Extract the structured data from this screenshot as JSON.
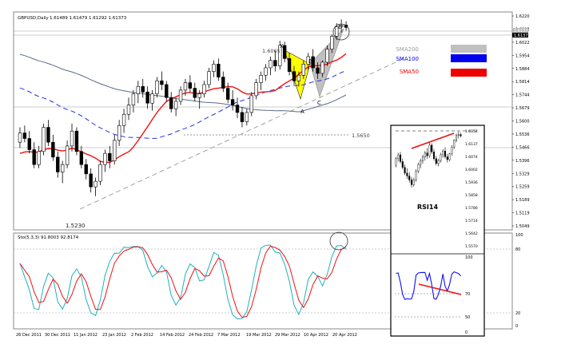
{
  "header": {
    "symbol": "GBPUSD,Daily",
    "ohlc": "1.61489 1.61479 1.61292 1.61373"
  },
  "colors": {
    "bull_candle": "#ffffff",
    "bear_candle": "#000000",
    "sma200": "#5a6b8c",
    "sma100": "#2233dd",
    "sma50": "#ee1111",
    "pattern_xab": "#ffff00",
    "pattern_bcd": "#c0c0c0",
    "stoch_main": "#20b0c0",
    "stoch_signal": "#ee1111",
    "rsi_line": "#1111ee",
    "trend_red": "#ee1111"
  },
  "legend": [
    {
      "label": "SMA200",
      "color": "#c0c0c0"
    },
    {
      "label": "SMA100",
      "color": "#0000ee"
    },
    {
      "label": "SMA50",
      "color": "#ee0000"
    }
  ],
  "annotations": {
    "x": "X",
    "a": "A",
    "b": "B",
    "c": "C",
    "d": "D",
    "x_value": "1.6065",
    "support": "1.5650",
    "low": "1.5230"
  },
  "price_axis": [
    "1.6220",
    "1.6092",
    "1.6022",
    "1.5954",
    "1.5884",
    "1.5814",
    "1.5744",
    "1.5679",
    "1.5600",
    "1.5536",
    "1.5466",
    "1.5396",
    "1.5329",
    "1.5259",
    "1.5189",
    "1.5119",
    "1.5049"
  ],
  "price_tags": [
    "1.6137",
    "1.6137"
  ],
  "stoch": {
    "header": "Sto(5,3,3) 91.8003 92.8174",
    "axis": [
      "100",
      "80",
      "20",
      "0"
    ]
  },
  "inset": {
    "title": "RSI14",
    "axis": [
      "1.6352",
      "1.6137",
      "1.6074",
      "1.6002",
      "1.5936",
      "1.5858",
      "1.5786",
      "1.5714",
      "1.5642",
      "1.5570"
    ],
    "rsi_axis": [
      "100",
      "70",
      "50",
      "0"
    ]
  },
  "date_axis": [
    "26 Dec 2011",
    "30 Dec 2011",
    "11 Jan 2012",
    "23 Jan 2012",
    "2 Feb 2012",
    "14 Feb 2012",
    "24 Feb 2012",
    "7 Mar 2012",
    "19 Mar 2012",
    "29 Mar 2012",
    "10 Apr 2012",
    "20 Apr 2012"
  ],
  "chart_data": {
    "type": "candlestick",
    "title": "GBPUSD,Daily",
    "ylim": [
      1.5049,
      1.622
    ],
    "series": [
      {
        "name": "SMA200"
      },
      {
        "name": "SMA100"
      },
      {
        "name": "SMA50"
      }
    ],
    "key_levels": {
      "high_X": 1.6065,
      "support": 1.565,
      "low": 1.523
    },
    "ohlc": [
      [
        1.552,
        1.56,
        1.549,
        1.557
      ],
      [
        1.557,
        1.561,
        1.552,
        1.554
      ],
      [
        1.554,
        1.558,
        1.546,
        1.548
      ],
      [
        1.548,
        1.552,
        1.538,
        1.54
      ],
      [
        1.54,
        1.55,
        1.538,
        1.547
      ],
      [
        1.547,
        1.562,
        1.545,
        1.56
      ],
      [
        1.56,
        1.564,
        1.55,
        1.552
      ],
      [
        1.552,
        1.556,
        1.542,
        1.544
      ],
      [
        1.544,
        1.547,
        1.533,
        1.536
      ],
      [
        1.536,
        1.542,
        1.53,
        1.54
      ],
      [
        1.54,
        1.553,
        1.538,
        1.55
      ],
      [
        1.55,
        1.562,
        1.547,
        1.558
      ],
      [
        1.558,
        1.56,
        1.545,
        1.547
      ],
      [
        1.547,
        1.55,
        1.538,
        1.54
      ],
      [
        1.54,
        1.543,
        1.532,
        1.535
      ],
      [
        1.535,
        1.538,
        1.525,
        1.528
      ],
      [
        1.528,
        1.533,
        1.523,
        1.531
      ],
      [
        1.531,
        1.542,
        1.529,
        1.54
      ],
      [
        1.54,
        1.548,
        1.536,
        1.546
      ],
      [
        1.546,
        1.55,
        1.538,
        1.542
      ],
      [
        1.542,
        1.556,
        1.54,
        1.553
      ],
      [
        1.553,
        1.564,
        1.55,
        1.561
      ],
      [
        1.561,
        1.57,
        1.557,
        1.567
      ],
      [
        1.567,
        1.576,
        1.564,
        1.572
      ],
      [
        1.572,
        1.58,
        1.568,
        1.578
      ],
      [
        1.578,
        1.585,
        1.573,
        1.582
      ],
      [
        1.582,
        1.586,
        1.576,
        1.579
      ],
      [
        1.579,
        1.582,
        1.57,
        1.573
      ],
      [
        1.573,
        1.58,
        1.569,
        1.578
      ],
      [
        1.578,
        1.587,
        1.576,
        1.585
      ],
      [
        1.585,
        1.59,
        1.58,
        1.583
      ],
      [
        1.583,
        1.585,
        1.574,
        1.576
      ],
      [
        1.576,
        1.579,
        1.568,
        1.57
      ],
      [
        1.57,
        1.576,
        1.566,
        1.574
      ],
      [
        1.574,
        1.582,
        1.572,
        1.58
      ],
      [
        1.58,
        1.586,
        1.577,
        1.584
      ],
      [
        1.584,
        1.588,
        1.579,
        1.581
      ],
      [
        1.581,
        1.584,
        1.574,
        1.576
      ],
      [
        1.576,
        1.58,
        1.57,
        1.578
      ],
      [
        1.578,
        1.585,
        1.576,
        1.583
      ],
      [
        1.583,
        1.592,
        1.581,
        1.59
      ],
      [
        1.59,
        1.596,
        1.587,
        1.594
      ],
      [
        1.594,
        1.597,
        1.585,
        1.587
      ],
      [
        1.587,
        1.59,
        1.579,
        1.581
      ],
      [
        1.581,
        1.584,
        1.573,
        1.575
      ],
      [
        1.575,
        1.58,
        1.569,
        1.572
      ],
      [
        1.572,
        1.576,
        1.565,
        1.568
      ],
      [
        1.568,
        1.571,
        1.56,
        1.563
      ],
      [
        1.563,
        1.57,
        1.561,
        1.568
      ],
      [
        1.568,
        1.579,
        1.566,
        1.577
      ],
      [
        1.577,
        1.586,
        1.575,
        1.584
      ],
      [
        1.584,
        1.59,
        1.58,
        1.588
      ],
      [
        1.588,
        1.594,
        1.585,
        1.592
      ],
      [
        1.592,
        1.598,
        1.588,
        1.596
      ],
      [
        1.596,
        1.601,
        1.59,
        1.593
      ],
      [
        1.593,
        1.6065,
        1.591,
        1.604
      ],
      [
        1.604,
        1.606,
        1.595,
        1.597
      ],
      [
        1.597,
        1.6,
        1.588,
        1.59
      ],
      [
        1.59,
        1.593,
        1.583,
        1.585
      ],
      [
        1.585,
        1.59,
        1.582,
        1.588
      ],
      [
        1.588,
        1.596,
        1.586,
        1.594
      ],
      [
        1.594,
        1.6,
        1.591,
        1.598
      ],
      [
        1.598,
        1.602,
        1.59,
        1.592
      ],
      [
        1.592,
        1.595,
        1.586,
        1.589
      ],
      [
        1.589,
        1.596,
        1.587,
        1.595
      ],
      [
        1.595,
        1.604,
        1.593,
        1.602
      ],
      [
        1.602,
        1.61,
        1.6,
        1.609
      ],
      [
        1.609,
        1.616,
        1.607,
        1.614
      ],
      [
        1.614,
        1.618,
        1.611,
        1.615
      ],
      [
        1.615,
        1.617,
        1.612,
        1.6137
      ]
    ]
  }
}
